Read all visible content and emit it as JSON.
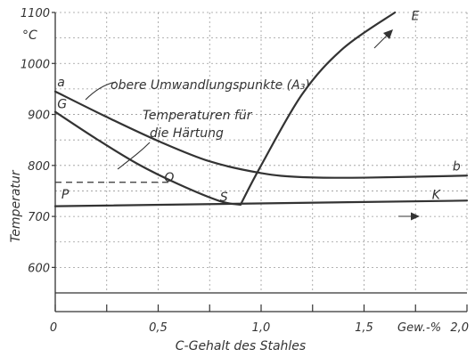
{
  "chart_data": {
    "type": "line",
    "xlabel": "C-Gehalt des Stahles",
    "ylabel": "Temperatur",
    "y_unit": "°C",
    "x_unit": "Gew.-%",
    "xlim": [
      0,
      2.0
    ],
    "ylim": [
      550,
      1100
    ],
    "x_ticks": [
      0,
      0.5,
      1.0,
      1.5,
      2.0
    ],
    "x_tick_labels": [
      "0",
      "0,5",
      "1,0",
      "1,5",
      "2,0"
    ],
    "y_ticks": [
      600,
      700,
      800,
      900,
      1000,
      1100
    ],
    "y_tick_labels": [
      "600",
      "700",
      "800",
      "900",
      "1000",
      "1100"
    ],
    "grid": true,
    "series": [
      {
        "name": "",
        "x": [
          0,
          0.2,
          0.4,
          0.6,
          0.8,
          0.9
        ],
        "y": [
          905,
          852,
          803,
          763,
          730,
          723
        ]
      },
      {
        "name": "",
        "x": [
          0.9,
          1.0,
          1.2,
          1.4,
          1.65
        ],
        "y": [
          723,
          800,
          940,
          1030,
          1100
        ]
      },
      {
        "name": "",
        "x": [
          0,
          0.25,
          0.5,
          0.75,
          1.0,
          1.2,
          1.5,
          2.0
        ],
        "y": [
          945,
          895,
          848,
          808,
          785,
          777,
          776,
          780
        ]
      },
      {
        "name": "",
        "x": [
          0,
          2.0
        ],
        "y": [
          720,
          731
        ]
      },
      {
        "name": "",
        "x": [
          0,
          0.55
        ],
        "y": [
          767,
          767
        ],
        "style": "dashed"
      }
    ],
    "point_labels": [
      {
        "text": "a",
        "x": 0.01,
        "y": 955
      },
      {
        "text": "G",
        "x": 0.01,
        "y": 912
      },
      {
        "text": "P",
        "x": 0.03,
        "y": 735
      },
      {
        "text": "O",
        "x": 0.53,
        "y": 768
      },
      {
        "text": "S",
        "x": 0.8,
        "y": 730
      },
      {
        "text": "E",
        "x": 1.73,
        "y": 1085
      },
      {
        "text": "b",
        "x": 1.93,
        "y": 790
      },
      {
        "text": "K",
        "x": 1.83,
        "y": 734
      }
    ],
    "annotations": {
      "upper": "obere Umwandlungspunkte (A₃)",
      "hardening_line1": "Temperaturen für",
      "hardening_line2": "die Härtung"
    }
  }
}
